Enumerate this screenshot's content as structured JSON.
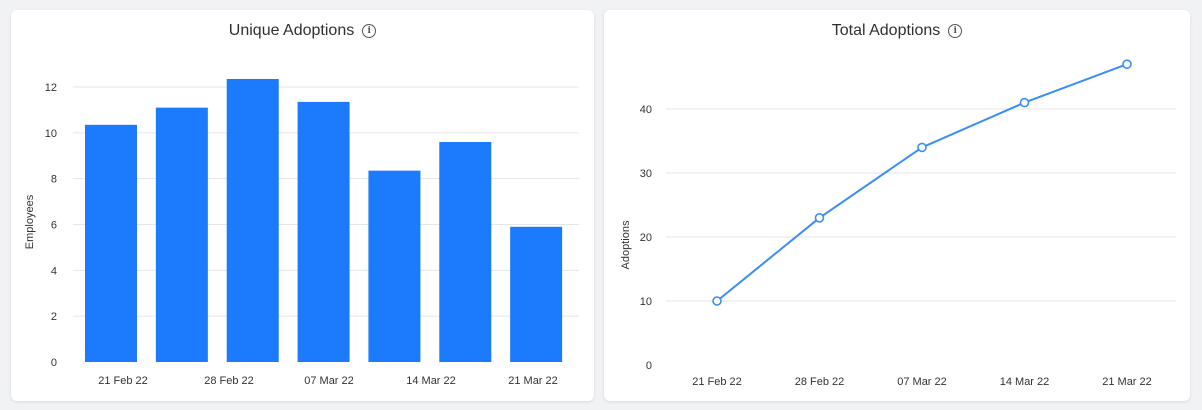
{
  "colors": {
    "bar": "#1b7bfc",
    "line": "#3a8ef6",
    "grid": "#e6e6e6",
    "axis_text": "#333333"
  },
  "info_icon": "info-icon",
  "chart_data": [
    {
      "type": "bar",
      "title": "Unique Adoptions",
      "ylabel": "Employees",
      "xlabel": "",
      "ylim": [
        0,
        12
      ],
      "yticks": [
        0,
        2,
        4,
        6,
        8,
        10,
        12
      ],
      "grid": true,
      "x_tick_labels": [
        "21 Feb 22",
        "28 Feb 22",
        "07 Mar 22",
        "14 Mar 22",
        "21 Mar 22"
      ],
      "values": [
        10.35,
        11.1,
        12.35,
        11.35,
        8.35,
        9.6,
        5.9
      ]
    },
    {
      "type": "line",
      "title": "Total Adoptions",
      "ylabel": "Adoptions",
      "xlabel": "",
      "ylim": [
        0,
        40
      ],
      "yticks": [
        0,
        10,
        20,
        30,
        40
      ],
      "grid": true,
      "categories": [
        "21 Feb 22",
        "28 Feb 22",
        "07 Mar 22",
        "14 Mar 22",
        "21 Mar 22"
      ],
      "values": [
        10,
        23,
        34,
        41,
        47
      ]
    }
  ]
}
